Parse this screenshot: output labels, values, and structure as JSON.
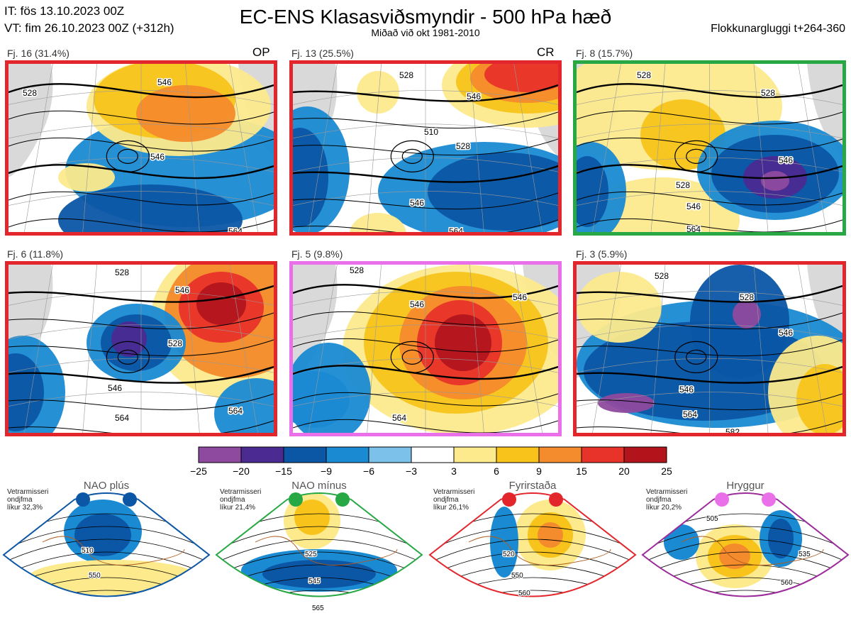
{
  "header": {
    "init_time": "IT: fös 13.10.2023 00Z",
    "valid_time": "VT: fim 26.10.2023 00Z  (+312h)",
    "title": "EC-ENS Klasasviðsmyndir - 500 hPa hæð",
    "subtitle": "Miðað við okt 1981-2010",
    "window": "Flokkunargluggi t+264-360"
  },
  "panels": [
    {
      "label": "Fj. 16 (31.4%)",
      "tag": "OP",
      "frame_color": "#e3262c",
      "contours": [
        "528",
        "546",
        "546",
        "564"
      ]
    },
    {
      "label": "Fj. 13 (25.5%)",
      "tag": "CR",
      "frame_color": "#e3262c",
      "contours": [
        "528",
        "546",
        "510",
        "528",
        "546",
        "564"
      ]
    },
    {
      "label": "Fj. 8 (15.7%)",
      "tag": "",
      "frame_color": "#27a844",
      "contours": [
        "528",
        "528",
        "546",
        "528",
        "546",
        "564"
      ]
    },
    {
      "label": "Fj. 6 (11.8%)",
      "tag": "",
      "frame_color": "#e3262c",
      "contours": [
        "528",
        "546",
        "528",
        "546",
        "564",
        "564"
      ]
    },
    {
      "label": "Fj. 5 (9.8%)",
      "tag": "",
      "frame_color": "#ea70ea",
      "contours": [
        "528",
        "546",
        "546",
        "564"
      ]
    },
    {
      "label": "Fj. 3 (5.9%)",
      "tag": "",
      "frame_color": "#e3262c",
      "contours": [
        "528",
        "528",
        "546",
        "546",
        "564",
        "582"
      ]
    }
  ],
  "chart_data": {
    "type": "heatmap",
    "title": "EC-ENS Klasasviðsmyndir - 500 hPa hæð",
    "variable": "500 hPa geopotential height anomaly",
    "colorbar": {
      "ticks": [
        "−25",
        "−20",
        "−15",
        "−9",
        "−6",
        "−3",
        "3",
        "6",
        "9",
        "15",
        "20",
        "25"
      ],
      "bounds": [
        -25,
        -20,
        -15,
        -9,
        -6,
        -3,
        3,
        6,
        9,
        15,
        20,
        25
      ],
      "colors": [
        "#8e4a9e",
        "#4b2a91",
        "#0b56a5",
        "#1a8ad3",
        "#7cc1ea",
        "#ffffff",
        "#fcea8c",
        "#f8c41b",
        "#f48b2c",
        "#e8332a",
        "#b3141c"
      ]
    },
    "clusters": [
      {
        "id": 16,
        "pct": 31.4
      },
      {
        "id": 13,
        "pct": 25.5
      },
      {
        "id": 8,
        "pct": 15.7
      },
      {
        "id": 6,
        "pct": 11.8
      },
      {
        "id": 5,
        "pct": 9.8
      },
      {
        "id": 3,
        "pct": 5.9
      }
    ],
    "regimes": [
      {
        "name": "NAO plús",
        "note": [
          "Vetrarmisseri",
          "ondjfma",
          "líkur 32,3%"
        ],
        "probability": 32.3,
        "color": "#0b56a5",
        "contours": [
          "510",
          "550"
        ]
      },
      {
        "name": "NAO mínus",
        "note": [
          "Vetrarmisseri",
          "ondjfma",
          "líkur 21,4%"
        ],
        "probability": 21.4,
        "color": "#27a844",
        "contours": [
          "525",
          "545",
          "565"
        ]
      },
      {
        "name": "Fyrirstaða",
        "note": [
          "Vetrarmisseri",
          "ondjfma",
          "líkur 26,1%"
        ],
        "probability": 26.1,
        "color": "#e3262c",
        "contours": [
          "520",
          "550",
          "560"
        ]
      },
      {
        "name": "Hryggur",
        "note": [
          "Vetrarmisseri",
          "ondjfma",
          "líkur 20,2%"
        ],
        "probability": 20.2,
        "color": "#9b2b9b",
        "contours": [
          "505",
          "535",
          "560"
        ]
      }
    ]
  }
}
